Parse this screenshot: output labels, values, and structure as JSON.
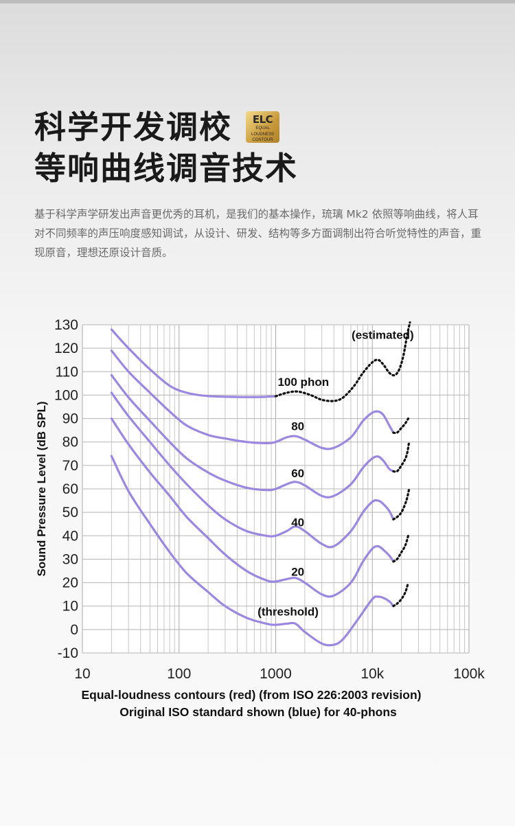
{
  "header": {
    "title_line1": "科学开发调校",
    "title_line2": "等响曲线调音技术",
    "badge_logo": "ELC",
    "badge_text_lines": [
      "EQUAL",
      "LOUDNESS",
      "CONTOUR"
    ]
  },
  "intro": "基于科学声学研发出声音更优秀的耳机，是我们的基本操作，琉璃 Mk2 依照等响曲线，将人耳对不同频率的声压响度感知调试，从设计、研发、结构等多方面调制出符合听觉特性的声音，重现原音，理想还原设计音质。",
  "colors": {
    "curve": "#9b87e0",
    "estimated": "#111111"
  },
  "chart_data": {
    "type": "line",
    "x_scale": "log",
    "xlim": [
      10,
      100000
    ],
    "ylim": [
      -10,
      130
    ],
    "grid": true,
    "ylabel": "Sound Pressure Level (dB SPL)",
    "x_tick_labels": [
      {
        "value": 10,
        "label": "10"
      },
      {
        "value": 100,
        "label": "100"
      },
      {
        "value": 1000,
        "label": "1000"
      },
      {
        "value": 10000,
        "label": "10k"
      },
      {
        "value": 100000,
        "label": "100k"
      }
    ],
    "y_ticks": [
      -10,
      0,
      10,
      20,
      30,
      40,
      50,
      60,
      70,
      80,
      90,
      100,
      110,
      120,
      130
    ],
    "caption_lines": [
      "Equal-loudness contours (red) (from ISO 226:2003 revision)",
      "Original ISO standard shown (blue) for 40-phons"
    ],
    "annotations": [
      {
        "text": "(estimated)",
        "x": 6100,
        "y": 124
      },
      {
        "text": "100 phon",
        "x": 1050,
        "y": 104
      },
      {
        "text": "80",
        "x": 1450,
        "y": 85
      },
      {
        "text": "60",
        "x": 1450,
        "y": 65
      },
      {
        "text": "40",
        "x": 1450,
        "y": 44
      },
      {
        "text": "20",
        "x": 1450,
        "y": 23
      },
      {
        "text": "(threshold)",
        "x": 650,
        "y": 6
      }
    ],
    "series": [
      {
        "solid": [
          [
            20,
            128
          ],
          [
            30,
            120
          ],
          [
            50,
            111
          ],
          [
            80,
            104
          ],
          [
            120,
            101
          ],
          [
            200,
            99.6
          ],
          [
            400,
            99.2
          ],
          [
            700,
            99.2
          ],
          [
            1000,
            99.5
          ]
        ],
        "dotted": [
          [
            1000,
            99.5
          ],
          [
            1300,
            101
          ],
          [
            1700,
            101.5
          ],
          [
            2300,
            100
          ],
          [
            3000,
            98
          ],
          [
            4000,
            97.5
          ],
          [
            5000,
            99
          ],
          [
            6500,
            104
          ],
          [
            8000,
            109.5
          ],
          [
            10000,
            114
          ],
          [
            11500,
            115
          ],
          [
            13000,
            113
          ],
          [
            15000,
            109.5
          ],
          [
            17000,
            108.5
          ],
          [
            19000,
            111
          ],
          [
            21000,
            117
          ],
          [
            23000,
            126
          ],
          [
            24500,
            131
          ]
        ]
      },
      {
        "solid": [
          [
            20,
            119
          ],
          [
            30,
            110
          ],
          [
            50,
            101
          ],
          [
            80,
            93
          ],
          [
            120,
            87
          ],
          [
            200,
            83
          ],
          [
            300,
            81.5
          ],
          [
            500,
            80
          ],
          [
            800,
            79.5
          ],
          [
            1000,
            80
          ],
          [
            1300,
            82
          ],
          [
            1600,
            82.5
          ],
          [
            2000,
            81
          ],
          [
            3000,
            77.5
          ],
          [
            4000,
            77.5
          ],
          [
            6000,
            82
          ],
          [
            8000,
            89
          ],
          [
            10000,
            92.5
          ],
          [
            11500,
            93
          ],
          [
            13000,
            91.5
          ],
          [
            15000,
            87
          ],
          [
            16500,
            84
          ]
        ],
        "dotted": [
          [
            16500,
            84
          ],
          [
            18000,
            84
          ],
          [
            20000,
            86
          ],
          [
            22000,
            88
          ],
          [
            23500,
            90
          ]
        ]
      },
      {
        "solid": [
          [
            20,
            108.5
          ],
          [
            30,
            99
          ],
          [
            50,
            89
          ],
          [
            80,
            80
          ],
          [
            120,
            73
          ],
          [
            200,
            67
          ],
          [
            300,
            63.5
          ],
          [
            500,
            60.5
          ],
          [
            800,
            59.5
          ],
          [
            1000,
            60
          ],
          [
            1300,
            62
          ],
          [
            1600,
            63
          ],
          [
            2000,
            61.5
          ],
          [
            3000,
            57
          ],
          [
            4000,
            57
          ],
          [
            6000,
            62
          ],
          [
            8000,
            69
          ],
          [
            10000,
            73
          ],
          [
            11500,
            73.8
          ],
          [
            13000,
            72
          ],
          [
            15000,
            68.5
          ],
          [
            16500,
            67.5
          ]
        ],
        "dotted": [
          [
            16500,
            67.5
          ],
          [
            18000,
            67.5
          ],
          [
            20000,
            70
          ],
          [
            22500,
            74
          ],
          [
            24000,
            80
          ]
        ]
      },
      {
        "solid": [
          [
            20,
            101
          ],
          [
            30,
            91
          ],
          [
            50,
            80
          ],
          [
            80,
            70
          ],
          [
            120,
            62
          ],
          [
            200,
            53
          ],
          [
            300,
            47
          ],
          [
            500,
            42
          ],
          [
            800,
            40
          ],
          [
            1000,
            40
          ],
          [
            1300,
            42
          ],
          [
            1600,
            44
          ],
          [
            2000,
            42
          ],
          [
            3000,
            36.5
          ],
          [
            4000,
            35.5
          ],
          [
            6000,
            42
          ],
          [
            8000,
            50
          ],
          [
            10000,
            54.5
          ],
          [
            11500,
            55
          ],
          [
            13000,
            53.5
          ],
          [
            15000,
            50.5
          ],
          [
            16500,
            47
          ]
        ],
        "dotted": [
          [
            16500,
            47
          ],
          [
            18000,
            48
          ],
          [
            20000,
            50
          ],
          [
            22500,
            55
          ],
          [
            24000,
            60
          ]
        ]
      },
      {
        "solid": [
          [
            20,
            90
          ],
          [
            30,
            79
          ],
          [
            50,
            67
          ],
          [
            80,
            57
          ],
          [
            120,
            48
          ],
          [
            200,
            39
          ],
          [
            300,
            32
          ],
          [
            500,
            25
          ],
          [
            800,
            21
          ],
          [
            1000,
            20.5
          ],
          [
            1300,
            21.5
          ],
          [
            1600,
            22
          ],
          [
            2000,
            20
          ],
          [
            3000,
            15
          ],
          [
            4000,
            14.5
          ],
          [
            6000,
            20
          ],
          [
            8000,
            29
          ],
          [
            10000,
            34.5
          ],
          [
            11500,
            35.5
          ],
          [
            13000,
            34
          ],
          [
            15000,
            31.5
          ],
          [
            16500,
            29
          ]
        ],
        "dotted": [
          [
            16500,
            29
          ],
          [
            18000,
            30
          ],
          [
            20000,
            33
          ],
          [
            22000,
            36
          ],
          [
            23500,
            40
          ]
        ]
      },
      {
        "solid": [
          [
            20,
            74
          ],
          [
            30,
            59
          ],
          [
            50,
            45
          ],
          [
            80,
            33
          ],
          [
            120,
            24
          ],
          [
            200,
            16
          ],
          [
            300,
            10
          ],
          [
            500,
            5
          ],
          [
            800,
            2.5
          ],
          [
            1000,
            2
          ],
          [
            1300,
            2.5
          ],
          [
            1600,
            2.5
          ],
          [
            2000,
            -1
          ],
          [
            3000,
            -6
          ],
          [
            4000,
            -6.5
          ],
          [
            5000,
            -4
          ],
          [
            7000,
            4
          ],
          [
            10000,
            13
          ],
          [
            11500,
            14
          ],
          [
            13000,
            13.5
          ],
          [
            15000,
            12
          ],
          [
            16500,
            10
          ]
        ],
        "dotted": [
          [
            16500,
            10
          ],
          [
            18000,
            11
          ],
          [
            20000,
            13
          ],
          [
            22000,
            16
          ],
          [
            23500,
            20
          ]
        ]
      }
    ]
  }
}
